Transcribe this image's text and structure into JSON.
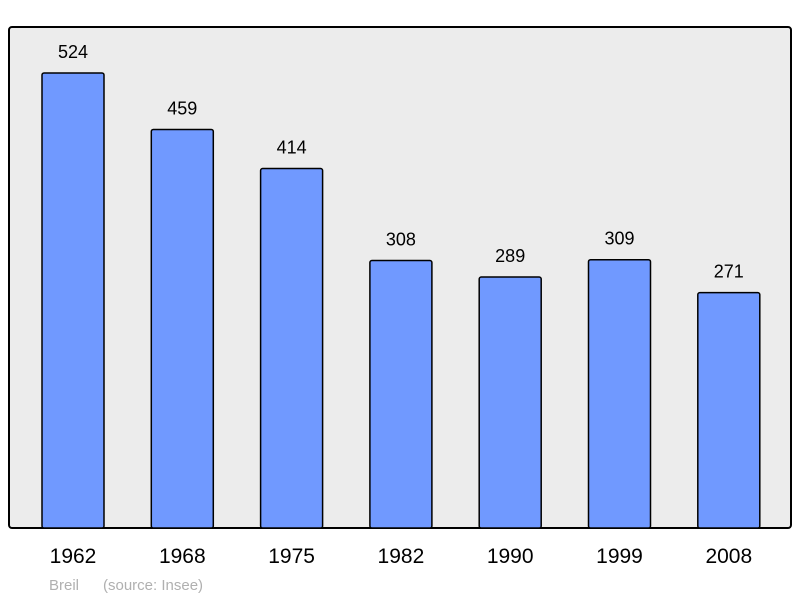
{
  "chart_data": {
    "type": "bar",
    "categories": [
      "1962",
      "1968",
      "1975",
      "1982",
      "1990",
      "1999",
      "2008"
    ],
    "values": [
      524,
      459,
      414,
      308,
      289,
      309,
      271
    ],
    "title": "",
    "xlabel": "",
    "ylabel": "",
    "ylim": [
      0,
      524
    ],
    "grid": false,
    "colors": {
      "bar": "#7099ff",
      "background": "#ececec",
      "border": "#000000",
      "caption": "#b0b0b0"
    }
  },
  "caption": {
    "place": "Breil",
    "source": "(source: Insee)"
  }
}
